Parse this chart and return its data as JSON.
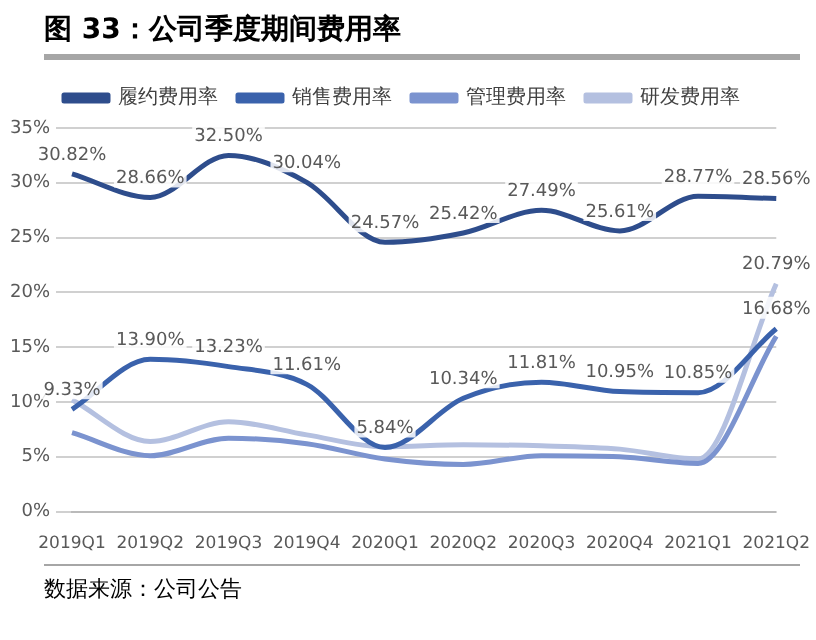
{
  "chart_data": {
    "type": "line",
    "title": "图 33：公司季度期间费用率",
    "categories": [
      "2019Q1",
      "2019Q2",
      "2019Q3",
      "2019Q4",
      "2020Q1",
      "2020Q2",
      "2020Q3",
      "2020Q4",
      "2021Q1",
      "2021Q2"
    ],
    "series": [
      {
        "name": "履约费用率",
        "color": "#2e4d8c",
        "values": [
          30.82,
          28.66,
          32.5,
          30.04,
          24.57,
          25.42,
          27.49,
          25.61,
          28.77,
          28.56
        ],
        "value_labels": [
          "30.82%",
          "28.66%",
          "32.50%",
          "30.04%",
          "24.57%",
          "25.42%",
          "27.49%",
          "25.61%",
          "28.77%",
          "28.56%"
        ]
      },
      {
        "name": "销售费用率",
        "color": "#3a62ac",
        "values": [
          9.33,
          13.9,
          13.23,
          11.61,
          5.84,
          10.34,
          11.81,
          10.95,
          10.85,
          16.68
        ],
        "value_labels": [
          "9.33%",
          "13.90%",
          "13.23%",
          "11.61%",
          "5.84%",
          "10.34%",
          "11.81%",
          "10.95%",
          "10.85%",
          "16.68%"
        ]
      },
      {
        "name": "管理费用率",
        "color": "#7b93cf",
        "values": [
          7.2,
          5.1,
          6.7,
          6.2,
          4.8,
          4.3,
          5.1,
          5.0,
          4.4,
          16.0
        ]
      },
      {
        "name": "研发费用率",
        "color": "#b4c0e0",
        "values": [
          10.2,
          6.4,
          8.2,
          7.0,
          5.9,
          6.1,
          6.0,
          5.7,
          4.8,
          20.79
        ],
        "value_labels": [
          null,
          null,
          null,
          null,
          null,
          null,
          null,
          null,
          null,
          "20.79%"
        ]
      }
    ],
    "ylim": [
      0,
      35
    ],
    "yticks": [
      {
        "value": 0,
        "label": "0%"
      },
      {
        "value": 5,
        "label": "5%"
      },
      {
        "value": 10,
        "label": "10%"
      },
      {
        "value": 15,
        "label": "15%"
      },
      {
        "value": 20,
        "label": "20%"
      },
      {
        "value": 25,
        "label": "25%"
      },
      {
        "value": 30,
        "label": "30%"
      },
      {
        "value": 35,
        "label": "35%"
      }
    ],
    "grid": "y",
    "legend": "top",
    "marker": "none",
    "line_style": "solid",
    "annotations": [
      "数据来源：公司公告"
    ]
  }
}
